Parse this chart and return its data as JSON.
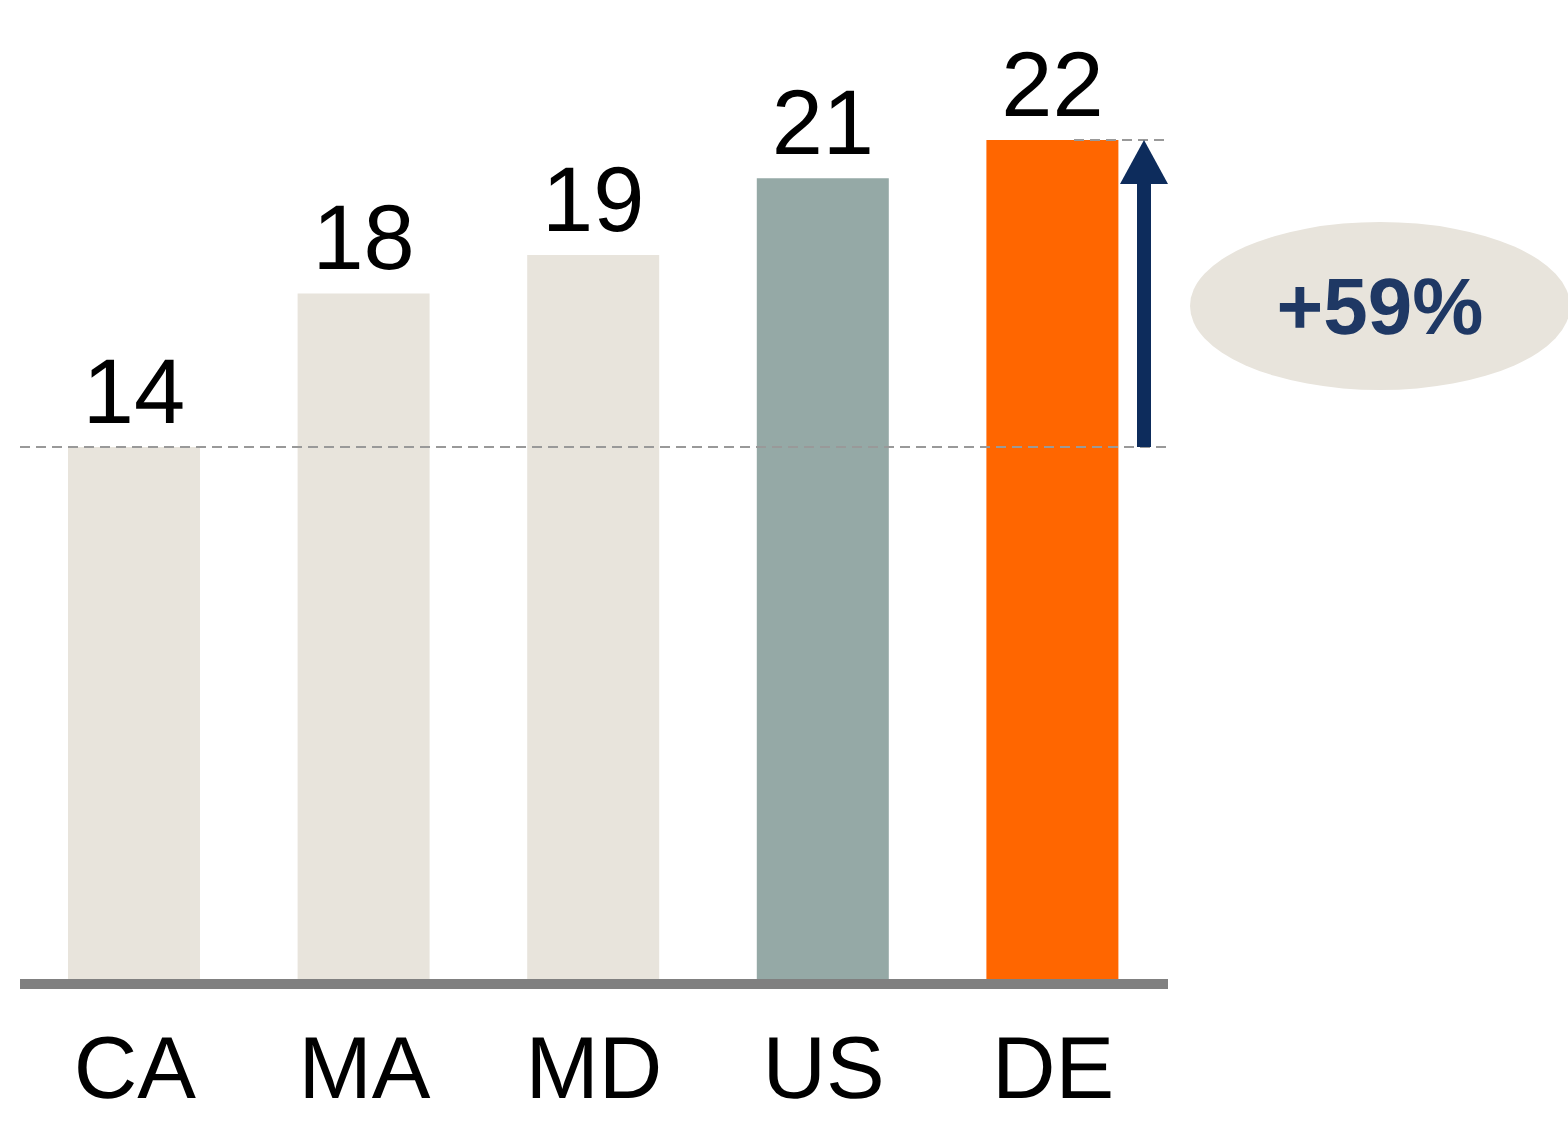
{
  "chart_data": {
    "type": "bar",
    "categories": [
      "CA",
      "MA",
      "MD",
      "US",
      "DE"
    ],
    "values": [
      14,
      18,
      19,
      21,
      22
    ],
    "colors": [
      "#e8e4dc",
      "#e8e4dc",
      "#e8e4dc",
      "#95a9a6",
      "#ff6600"
    ],
    "data_labels": true,
    "ref_lines": [
      {
        "axis": "y",
        "value": 14,
        "color": "#999999",
        "line_style": "dashed"
      }
    ],
    "annotations": [
      "+59%"
    ]
  }
}
